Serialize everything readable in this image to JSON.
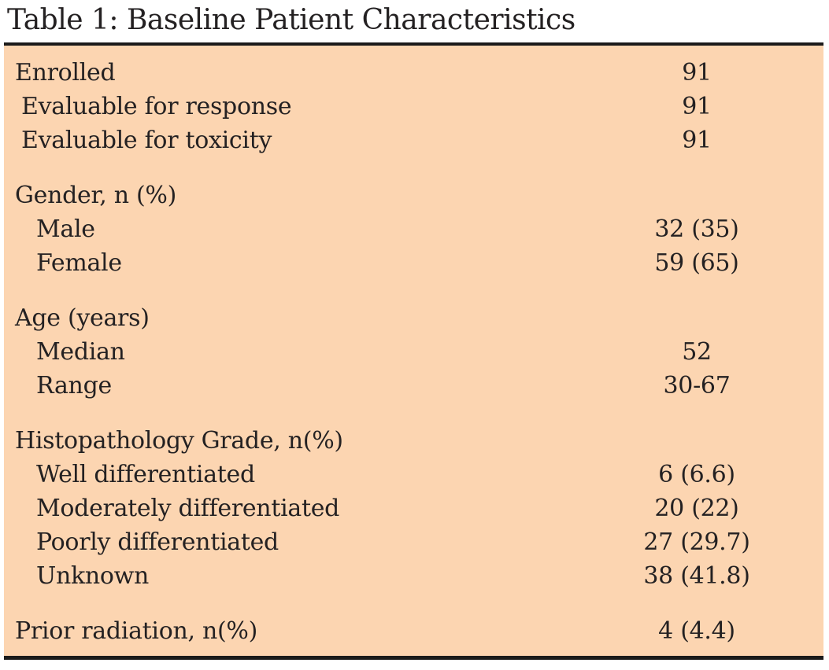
{
  "theme": {
    "table_background": "#fcd5b1",
    "rule_color": "#1b1b1b",
    "text_color": "#242122"
  },
  "table": {
    "title": "Table 1: Baseline Patient Characteristics",
    "sections": [
      {
        "rows": [
          {
            "label": "Enrolled",
            "value": "91"
          },
          {
            "label": "Evaluable for response",
            "value": "91"
          },
          {
            "label": "Evaluable for toxicity",
            "value": "91"
          }
        ]
      },
      {
        "rows": [
          {
            "label": "Gender, n (%)",
            "value": ""
          },
          {
            "label": "Male",
            "value": "32 (35)"
          },
          {
            "label": "Female",
            "value": "59 (65)"
          }
        ]
      },
      {
        "rows": [
          {
            "label": "Age (years)",
            "value": ""
          },
          {
            "label": "Median",
            "value": "52"
          },
          {
            "label": "Range",
            "value": "30-67"
          }
        ]
      },
      {
        "rows": [
          {
            "label": "Histopathology Grade, n(%)",
            "value": ""
          },
          {
            "label": "Well differentiated",
            "value": "6 (6.6)"
          },
          {
            "label": "Moderately differentiated",
            "value": "20 (22)"
          },
          {
            "label": "Poorly differentiated",
            "value": "27 (29.7)"
          },
          {
            "label": "Unknown",
            "value": "38 (41.8)"
          }
        ]
      },
      {
        "rows": [
          {
            "label": "Prior radiation, n(%)",
            "value": "4 (4.4)"
          }
        ]
      }
    ]
  }
}
